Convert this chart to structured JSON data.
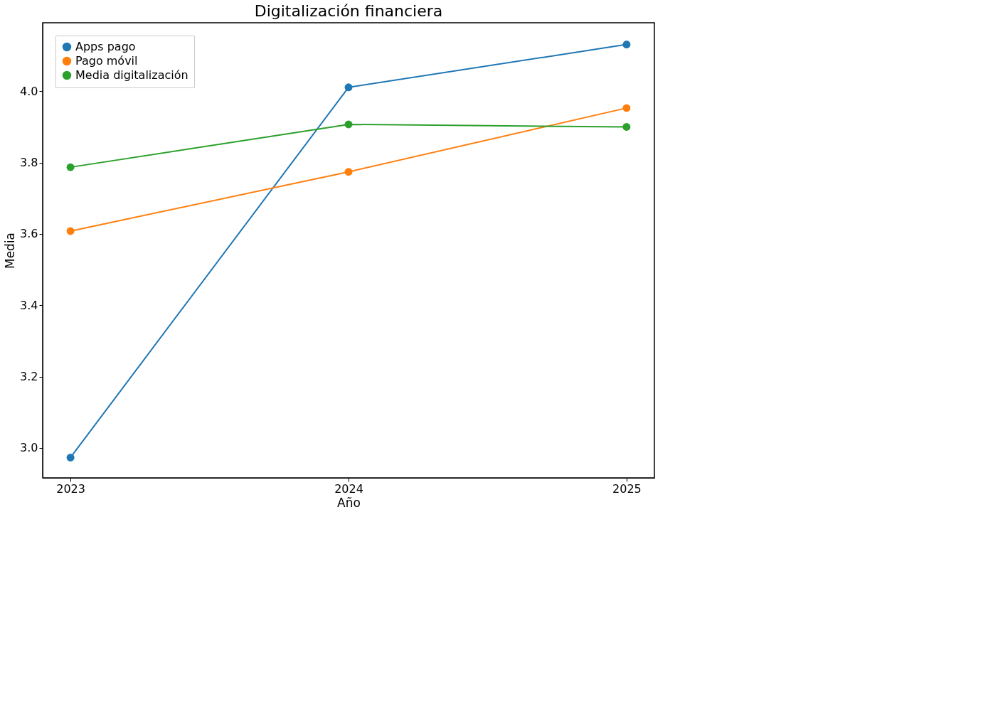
{
  "chart_data": {
    "type": "line",
    "title": "Digitalización financiera",
    "xlabel": "Año",
    "ylabel": "Media",
    "x": [
      2023,
      2024,
      2025
    ],
    "series": [
      {
        "name": "Apps pago",
        "color": "#1f77b4",
        "values": [
          2.973,
          4.011,
          4.131
        ]
      },
      {
        "name": "Pago móvil",
        "color": "#ff7f0e",
        "values": [
          3.608,
          3.774,
          3.953
        ]
      },
      {
        "name": "Media digitalización",
        "color": "#2ca02c",
        "values": [
          3.787,
          3.907,
          3.9
        ]
      }
    ],
    "xlim": [
      2022.9,
      2025.1
    ],
    "xticks": [
      2023,
      2024,
      2025
    ],
    "ylim": [
      2.916,
      4.192
    ],
    "yticks": [
      {
        "value": 3,
        "label": "3.0"
      },
      {
        "value": 3.2,
        "label": "3.2"
      },
      {
        "value": 3.4,
        "label": "3.4"
      },
      {
        "value": 3.6,
        "label": "3.6"
      },
      {
        "value": 3.8,
        "label": "3.8"
      },
      {
        "value": 4,
        "label": "4.0"
      }
    ],
    "grid": false,
    "legend": "top left",
    "marker": "circle",
    "line_style": "solid"
  }
}
